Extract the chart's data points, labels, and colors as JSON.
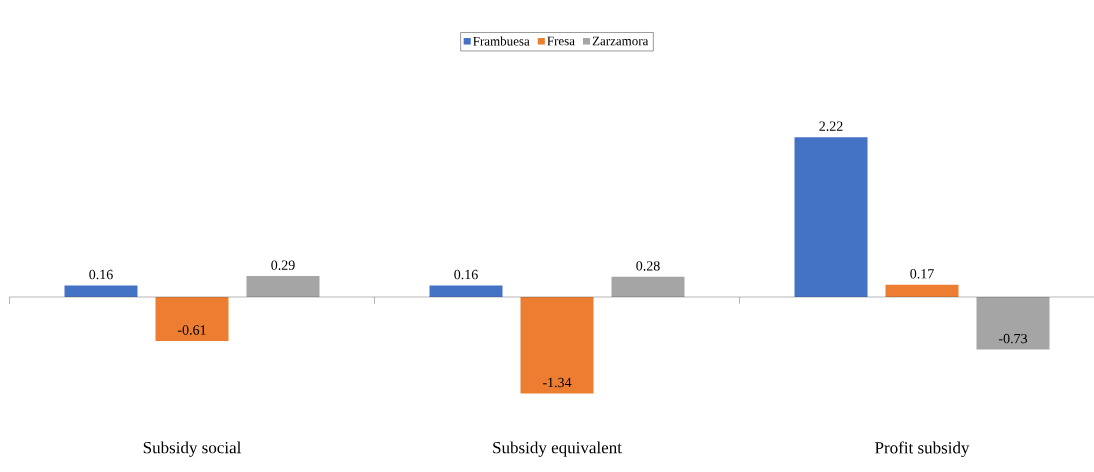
{
  "chart_data": {
    "type": "bar",
    "categories": [
      "Subsidy social",
      "Subsidy equivalent",
      "Profit subsidy"
    ],
    "series": [
      {
        "name": "Frambuesa",
        "color": "#4472c4",
        "values": [
          0.16,
          0.16,
          2.22
        ]
      },
      {
        "name": "Fresa",
        "color": "#ed7d31",
        "values": [
          -0.61,
          -1.34,
          0.17
        ]
      },
      {
        "name": "Zarzamora",
        "color": "#a5a5a5",
        "values": [
          0.29,
          0.28,
          -0.73
        ]
      }
    ],
    "data_labels": true,
    "legend": "top"
  }
}
